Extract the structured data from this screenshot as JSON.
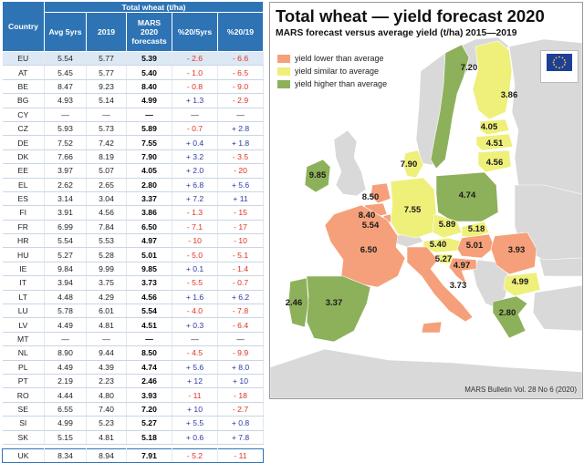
{
  "table": {
    "top_header": "Total wheat (t/ha)",
    "col_country": "Country",
    "col_avg": "Avg 5yrs",
    "col_2019": "2019",
    "col_forecast_lines": [
      "MARS",
      "2020",
      "forecasts"
    ],
    "col_pct5": "%20/5yrs",
    "col_pct19": "%20/19",
    "rows": [
      {
        "c": "EU",
        "avg": "5.54",
        "y19": "5.77",
        "f": "5.39",
        "p5": "- 2.6",
        "p19": "- 6.6"
      },
      {
        "c": "AT",
        "avg": "5.45",
        "y19": "5.77",
        "f": "5.40",
        "p5": "- 1.0",
        "p19": "- 6.5"
      },
      {
        "c": "BE",
        "avg": "8.47",
        "y19": "9.23",
        "f": "8.40",
        "p5": "- 0.8",
        "p19": "- 9.0"
      },
      {
        "c": "BG",
        "avg": "4.93",
        "y19": "5.14",
        "f": "4.99",
        "p5": "+ 1.3",
        "p19": "- 2.9"
      },
      {
        "c": "CY",
        "avg": "—",
        "y19": "—",
        "f": "—",
        "p5": "—",
        "p19": "—"
      },
      {
        "c": "CZ",
        "avg": "5.93",
        "y19": "5.73",
        "f": "5.89",
        "p5": "- 0.7",
        "p19": "+ 2.8"
      },
      {
        "c": "DE",
        "avg": "7.52",
        "y19": "7.42",
        "f": "7.55",
        "p5": "+ 0.4",
        "p19": "+ 1.8"
      },
      {
        "c": "DK",
        "avg": "7.66",
        "y19": "8.19",
        "f": "7.90",
        "p5": "+ 3.2",
        "p19": "- 3.5"
      },
      {
        "c": "EE",
        "avg": "3.97",
        "y19": "5.07",
        "f": "4.05",
        "p5": "+ 2.0",
        "p19": "- 20"
      },
      {
        "c": "EL",
        "avg": "2.62",
        "y19": "2.65",
        "f": "2.80",
        "p5": "+ 6.8",
        "p19": "+ 5.6"
      },
      {
        "c": "ES",
        "avg": "3.14",
        "y19": "3.04",
        "f": "3.37",
        "p5": "+ 7.2",
        "p19": "+ 11"
      },
      {
        "c": "FI",
        "avg": "3.91",
        "y19": "4.56",
        "f": "3.86",
        "p5": "- 1.3",
        "p19": "- 15"
      },
      {
        "c": "FR",
        "avg": "6.99",
        "y19": "7.84",
        "f": "6.50",
        "p5": "- 7.1",
        "p19": "- 17"
      },
      {
        "c": "HR",
        "avg": "5.54",
        "y19": "5.53",
        "f": "4.97",
        "p5": "- 10",
        "p19": "- 10"
      },
      {
        "c": "HU",
        "avg": "5.27",
        "y19": "5.28",
        "f": "5.01",
        "p5": "- 5.0",
        "p19": "- 5.1"
      },
      {
        "c": "IE",
        "avg": "9.84",
        "y19": "9.99",
        "f": "9.85",
        "p5": "+ 0.1",
        "p19": "- 1.4"
      },
      {
        "c": "IT",
        "avg": "3.94",
        "y19": "3.75",
        "f": "3.73",
        "p5": "- 5.5",
        "p19": "- 0.7"
      },
      {
        "c": "LT",
        "avg": "4.48",
        "y19": "4.29",
        "f": "4.56",
        "p5": "+ 1.6",
        "p19": "+ 6.2"
      },
      {
        "c": "LU",
        "avg": "5.78",
        "y19": "6.01",
        "f": "5.54",
        "p5": "- 4.0",
        "p19": "- 7.8"
      },
      {
        "c": "LV",
        "avg": "4.49",
        "y19": "4.81",
        "f": "4.51",
        "p5": "+ 0.3",
        "p19": "- 6.4"
      },
      {
        "c": "MT",
        "avg": "—",
        "y19": "—",
        "f": "—",
        "p5": "—",
        "p19": "—"
      },
      {
        "c": "NL",
        "avg": "8.90",
        "y19": "9.44",
        "f": "8.50",
        "p5": "- 4.5",
        "p19": "- 9.9"
      },
      {
        "c": "PL",
        "avg": "4.49",
        "y19": "4.39",
        "f": "4.74",
        "p5": "+ 5.6",
        "p19": "+ 8.0"
      },
      {
        "c": "PT",
        "avg": "2.19",
        "y19": "2.23",
        "f": "2.46",
        "p5": "+ 12",
        "p19": "+ 10"
      },
      {
        "c": "RO",
        "avg": "4.44",
        "y19": "4.80",
        "f": "3.93",
        "p5": "- 11",
        "p19": "- 18"
      },
      {
        "c": "SE",
        "avg": "6.55",
        "y19": "7.40",
        "f": "7.20",
        "p5": "+ 10",
        "p19": "- 2.7"
      },
      {
        "c": "SI",
        "avg": "4.99",
        "y19": "5.23",
        "f": "5.27",
        "p5": "+ 5.5",
        "p19": "+ 0.8"
      },
      {
        "c": "SK",
        "avg": "5.15",
        "y19": "4.81",
        "f": "5.18",
        "p5": "+ 0.6",
        "p19": "+ 7.8"
      }
    ],
    "uk_row": {
      "c": "UK",
      "avg": "8.34",
      "y19": "8.94",
      "f": "7.91",
      "p5": "- 5.2",
      "p19": "- 11"
    },
    "colors": {
      "header_bg": "#2e74b5",
      "negative": "#e0301e",
      "positive": "#2b3aa6"
    }
  },
  "map": {
    "title": "Total wheat — yield forecast 2020",
    "subtitle": "MARS forecast versus average yield (t/ha) 2015—2019",
    "legend": [
      {
        "label": "yield lower than average",
        "color": "#f5a07a"
      },
      {
        "label": "yield similar to average",
        "color": "#eef07a"
      },
      {
        "label": "yield higher than average",
        "color": "#8db15a"
      }
    ],
    "labels": [
      "7.20",
      "3.86",
      "4.05",
      "4.51",
      "4.56",
      "7.90",
      "9.85",
      "8.50",
      "8.40",
      "5.54",
      "7.55",
      "4.74",
      "5.89",
      "5.18",
      "5.40",
      "5.01",
      "3.93",
      "6.50",
      "5.27",
      "4.97",
      "4.99",
      "3.73",
      "2.80",
      "2.46",
      "3.37"
    ],
    "source": "MARS Bulletin Vol. 28 No 6 (2020)",
    "colors": {
      "lower": "#f5a07a",
      "similar": "#eef07a",
      "higher": "#8db15a",
      "sea": "#ffffff",
      "nonEU": "#d9d9d9",
      "outline": "#ffffff"
    }
  }
}
